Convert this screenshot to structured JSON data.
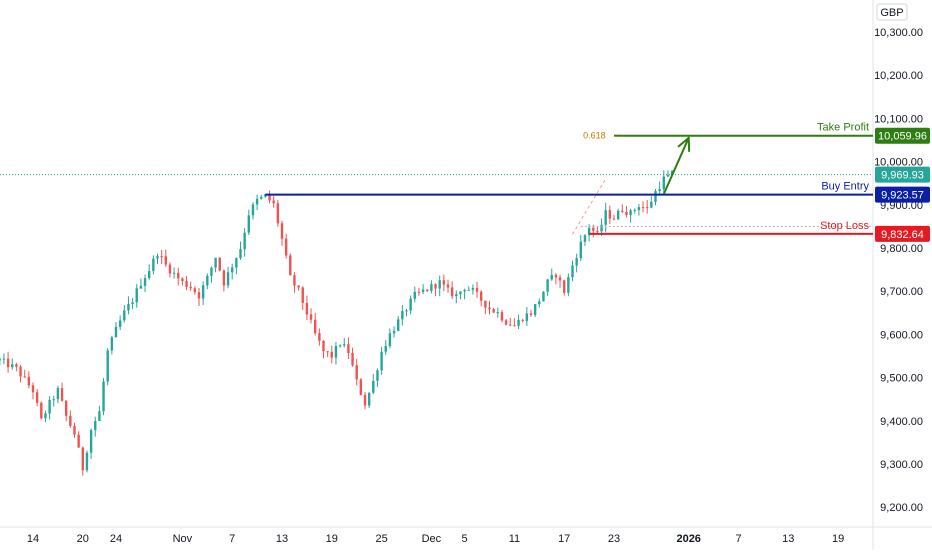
{
  "colors": {
    "up": "#26a69a",
    "down": "#ef5350",
    "take_profit": "#2e7d12",
    "buy_entry": "#0b1fa6",
    "stop_loss": "#e51b23",
    "current": "#26a69a",
    "fib": "#c77800",
    "axis_text": "#131722"
  },
  "chart_data": {
    "type": "candlestick",
    "currency": "GBP",
    "y_axis": {
      "range": [
        9150,
        10370
      ],
      "ticks": [
        "10,300.00",
        "10,200.00",
        "10,100.00",
        "10,000.00",
        "9,900.00",
        "9,800.00",
        "9,700.00",
        "9,600.00",
        "9,500.00",
        "9,400.00",
        "9,300.00",
        "9,200.00"
      ],
      "tick_values": [
        10300,
        10200,
        10100,
        10000,
        9900,
        9800,
        9700,
        9600,
        9500,
        9400,
        9300,
        9200
      ]
    },
    "x_axis": {
      "ticks": [
        {
          "label": "14",
          "day": 0
        },
        {
          "label": "20",
          "day": 6
        },
        {
          "label": "24",
          "day": 10
        },
        {
          "label": "Nov",
          "day": 18
        },
        {
          "label": "7",
          "day": 24
        },
        {
          "label": "13",
          "day": 30
        },
        {
          "label": "19",
          "day": 36
        },
        {
          "label": "25",
          "day": 42
        },
        {
          "label": "Dec",
          "day": 48
        },
        {
          "label": "5",
          "day": 52
        },
        {
          "label": "11",
          "day": 58
        },
        {
          "label": "17",
          "day": 64
        },
        {
          "label": "23",
          "day": 70
        },
        {
          "label": "2026",
          "day": 79
        },
        {
          "label": "7",
          "day": 85
        },
        {
          "label": "13",
          "day": 91
        },
        {
          "label": "19",
          "day": 97
        }
      ],
      "bold_label": "2026",
      "day_range": [
        -4,
        101
      ]
    },
    "price_path": [
      [
        -4,
        9540
      ],
      [
        -2,
        9520
      ],
      [
        0,
        9470
      ],
      [
        1,
        9400
      ],
      [
        2,
        9440
      ],
      [
        3,
        9470
      ],
      [
        4,
        9410
      ],
      [
        5,
        9370
      ],
      [
        6,
        9290
      ],
      [
        7,
        9380
      ],
      [
        8,
        9420
      ],
      [
        9,
        9560
      ],
      [
        10,
        9610
      ],
      [
        11,
        9650
      ],
      [
        12,
        9680
      ],
      [
        13,
        9720
      ],
      [
        14,
        9750
      ],
      [
        15,
        9790
      ],
      [
        16,
        9760
      ],
      [
        17,
        9740
      ],
      [
        18,
        9720
      ],
      [
        19,
        9710
      ],
      [
        20,
        9690
      ],
      [
        21,
        9730
      ],
      [
        22,
        9780
      ],
      [
        23,
        9720
      ],
      [
        24,
        9760
      ],
      [
        25,
        9800
      ],
      [
        26,
        9880
      ],
      [
        27,
        9910
      ],
      [
        28,
        9920
      ],
      [
        29,
        9900
      ],
      [
        30,
        9820
      ],
      [
        31,
        9730
      ],
      [
        32,
        9700
      ],
      [
        33,
        9650
      ],
      [
        34,
        9600
      ],
      [
        35,
        9560
      ],
      [
        36,
        9550
      ],
      [
        37,
        9580
      ],
      [
        38,
        9560
      ],
      [
        39,
        9490
      ],
      [
        40,
        9440
      ],
      [
        41,
        9490
      ],
      [
        42,
        9560
      ],
      [
        43,
        9600
      ],
      [
        44,
        9630
      ],
      [
        45,
        9660
      ],
      [
        46,
        9690
      ],
      [
        47,
        9700
      ],
      [
        48,
        9710
      ],
      [
        49,
        9720
      ],
      [
        50,
        9700
      ],
      [
        51,
        9690
      ],
      [
        52,
        9710
      ],
      [
        53,
        9700
      ],
      [
        54,
        9680
      ],
      [
        55,
        9660
      ],
      [
        56,
        9650
      ],
      [
        57,
        9630
      ],
      [
        58,
        9620
      ],
      [
        59,
        9640
      ],
      [
        60,
        9650
      ],
      [
        61,
        9680
      ],
      [
        62,
        9720
      ],
      [
        63,
        9740
      ],
      [
        64,
        9700
      ],
      [
        65,
        9760
      ],
      [
        66,
        9810
      ],
      [
        67,
        9850
      ],
      [
        68,
        9830
      ],
      [
        69,
        9880
      ],
      [
        70,
        9870
      ],
      [
        71,
        9890
      ],
      [
        72,
        9880
      ],
      [
        73,
        9900
      ],
      [
        74,
        9890
      ],
      [
        75,
        9930
      ],
      [
        76,
        9960
      ],
      [
        77,
        9970
      ]
    ],
    "levels": [
      {
        "name": "Take Profit",
        "value": "10,059.96",
        "price": 10059.96,
        "start_day": 71,
        "color_key": "take_profit"
      },
      {
        "name": "Buy Entry",
        "value": "9,923.57",
        "price": 9923.57,
        "start_day": 28,
        "color_key": "buy_entry"
      },
      {
        "name": "Stop Loss",
        "value": "9,832.64",
        "price": 9832.64,
        "start_day": 67,
        "color_key": "stop_loss"
      }
    ],
    "current_price": {
      "value": "9,969.93",
      "price": 9969.93
    },
    "fib": {
      "label": "0.618",
      "price": 10059.96
    },
    "arrow": {
      "from": [
        76,
        9925
      ],
      "to": [
        79,
        10055
      ]
    },
    "fib_dashed_line": {
      "from": [
        65,
        9832
      ],
      "to": [
        69,
        9960
      ]
    }
  }
}
